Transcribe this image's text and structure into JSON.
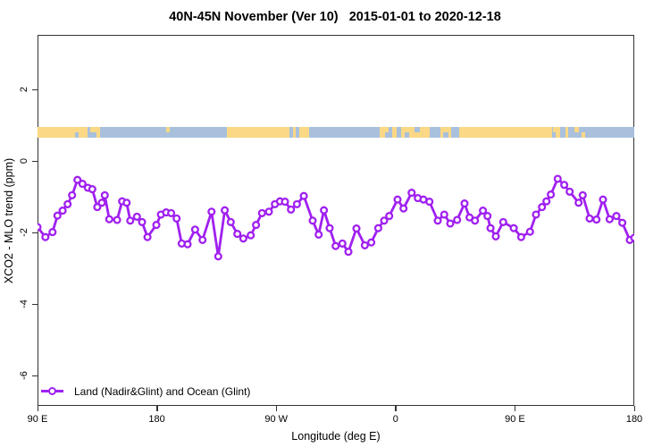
{
  "title": "40N-45N November (Ver 10)   2015-01-01 to 2020-12-18",
  "legend": {
    "label": "Land (Nadir&Glint) and Ocean (Glint)"
  },
  "colors": {
    "series": "#A020F0",
    "marker_fill": "#ffffff",
    "land": "#FAD886",
    "ocean": "#A8C0DC",
    "frame": "#333333"
  },
  "chart_data": {
    "type": "line",
    "title": "40N-45N November (Ver 10)   2015-01-01 to 2020-12-18",
    "xlabel": "Longitude (deg E)",
    "ylabel": "XCO2 - MLO trend (ppm)",
    "x_axis_note": "axis spans 450 deg eastward starting at 90E (90E,180,90W,0,90E,180)",
    "x_ticks": [
      {
        "pos": 0,
        "label": "90 E"
      },
      {
        "pos": 90,
        "label": "180"
      },
      {
        "pos": 180,
        "label": "90 W"
      },
      {
        "pos": 270,
        "label": "0"
      },
      {
        "pos": 360,
        "label": "90 E"
      },
      {
        "pos": 450,
        "label": "180"
      }
    ],
    "y_ticks": [
      {
        "val": 2,
        "label": "2"
      },
      {
        "val": 0,
        "label": "0"
      },
      {
        "val": -2,
        "label": "-2"
      },
      {
        "val": -4,
        "label": "-4"
      },
      {
        "val": -6,
        "label": "-6"
      }
    ],
    "xlim": [
      0,
      450
    ],
    "ylim": [
      -6.9,
      3.55
    ],
    "grid": false,
    "legend_position": "bottom-left",
    "series": [
      {
        "name": "Land (Nadir&Glint) and Ocean (Glint)",
        "marker": "open-circle",
        "points": [
          [
            0,
            -1.85
          ],
          [
            5.9,
            -2.13
          ],
          [
            11.3,
            -1.99
          ],
          [
            15.0,
            -1.53
          ],
          [
            18.9,
            -1.39
          ],
          [
            22.7,
            -1.21
          ],
          [
            26.1,
            -0.96
          ],
          [
            30.1,
            -0.53
          ],
          [
            33.9,
            -0.64
          ],
          [
            37.9,
            -0.75
          ],
          [
            41.3,
            -0.79
          ],
          [
            45.1,
            -1.29
          ],
          [
            48.5,
            -1.17
          ],
          [
            50.7,
            -0.96
          ],
          [
            54.1,
            -1.63
          ],
          [
            60.0,
            -1.65
          ],
          [
            63.8,
            -1.13
          ],
          [
            67.2,
            -1.17
          ],
          [
            69.9,
            -1.67
          ],
          [
            75.0,
            -1.56
          ],
          [
            78.8,
            -1.71
          ],
          [
            82.9,
            -2.13
          ],
          [
            89.6,
            -1.79
          ],
          [
            93.0,
            -1.5
          ],
          [
            97.0,
            -1.44
          ],
          [
            100.8,
            -1.46
          ],
          [
            104.9,
            -1.61
          ],
          [
            108.7,
            -2.31
          ],
          [
            113.2,
            -2.33
          ],
          [
            118.8,
            -1.92
          ],
          [
            124.4,
            -2.21
          ],
          [
            131.2,
            -1.42
          ],
          [
            136.3,
            -2.67
          ],
          [
            141.2,
            -1.38
          ],
          [
            145.7,
            -1.71
          ],
          [
            150.7,
            -2.04
          ],
          [
            155.2,
            -2.17
          ],
          [
            160.8,
            -2.08
          ],
          [
            164.8,
            -1.79
          ],
          [
            169.3,
            -1.46
          ],
          [
            174.5,
            -1.42
          ],
          [
            179.0,
            -1.21
          ],
          [
            182.8,
            -1.13
          ],
          [
            186.6,
            -1.14
          ],
          [
            191.1,
            -1.36
          ],
          [
            195.6,
            -1.21
          ],
          [
            200.8,
            -0.98
          ],
          [
            207.5,
            -1.67
          ],
          [
            212.0,
            -2.06
          ],
          [
            216.0,
            -1.38
          ],
          [
            220.3,
            -1.88
          ],
          [
            224.8,
            -2.38
          ],
          [
            229.9,
            -2.31
          ],
          [
            234.4,
            -2.54
          ],
          [
            240.5,
            -1.89
          ],
          [
            246.8,
            -2.36
          ],
          [
            251.7,
            -2.28
          ],
          [
            256.9,
            -1.88
          ],
          [
            261.4,
            -1.67
          ],
          [
            265.2,
            -1.54
          ],
          [
            271.5,
            -1.08
          ],
          [
            276.0,
            -1.33
          ],
          [
            282.1,
            -0.89
          ],
          [
            286.8,
            -1.04
          ],
          [
            291.0,
            -1.08
          ],
          [
            295.5,
            -1.14
          ],
          [
            301.8,
            -1.67
          ],
          [
            306.7,
            -1.5
          ],
          [
            311.2,
            -1.75
          ],
          [
            316.4,
            -1.65
          ],
          [
            322.0,
            -1.19
          ],
          [
            325.8,
            -1.58
          ],
          [
            329.9,
            -1.67
          ],
          [
            335.9,
            -1.39
          ],
          [
            339.3,
            -1.54
          ],
          [
            341.6,
            -1.88
          ],
          [
            345.6,
            -2.11
          ],
          [
            351.2,
            -1.71
          ],
          [
            359.1,
            -1.88
          ],
          [
            364.7,
            -2.13
          ],
          [
            371.4,
            -1.98
          ],
          [
            375.9,
            -1.5
          ],
          [
            380.4,
            -1.29
          ],
          [
            383.8,
            -1.13
          ],
          [
            387.1,
            -0.94
          ],
          [
            392.3,
            -0.5
          ],
          [
            397.2,
            -0.67
          ],
          [
            401.3,
            -0.86
          ],
          [
            408.0,
            -1.17
          ],
          [
            411.1,
            -0.96
          ],
          [
            416.3,
            -1.61
          ],
          [
            421.5,
            -1.64
          ],
          [
            426.4,
            -1.08
          ],
          [
            431.4,
            -1.63
          ],
          [
            436.5,
            -1.54
          ],
          [
            441.0,
            -1.73
          ],
          [
            446.6,
            -2.21
          ],
          [
            450,
            -2.15
          ]
        ]
      }
    ],
    "map_strip": {
      "description": "land/ocean coastline band at 40N-45N",
      "y_range_ppm": [
        0.65,
        0.95
      ],
      "segments": [
        {
          "range": [
            0,
            37.7
          ],
          "type": "land"
        },
        {
          "range": [
            37.7,
            44.5
          ],
          "type": "ocean"
        },
        {
          "range": [
            44.5,
            47
          ],
          "type": "land"
        },
        {
          "range": [
            47,
            143
          ],
          "type": "ocean"
        },
        {
          "range": [
            143,
            190
          ],
          "type": "land"
        },
        {
          "range": [
            190,
            192.5
          ],
          "type": "ocean"
        },
        {
          "range": [
            192.5,
            194.5
          ],
          "type": "land"
        },
        {
          "range": [
            194.5,
            197.5
          ],
          "type": "ocean"
        },
        {
          "range": [
            197.5,
            205
          ],
          "type": "land"
        },
        {
          "range": [
            205,
            258
          ],
          "type": "ocean"
        },
        {
          "range": [
            258,
            265
          ],
          "type": "land"
        },
        {
          "range": [
            265,
            267.5
          ],
          "type": "ocean"
        },
        {
          "range": [
            267.5,
            271
          ],
          "type": "land"
        },
        {
          "range": [
            271,
            274
          ],
          "type": "ocean"
        },
        {
          "range": [
            274,
            296
          ],
          "type": "land"
        },
        {
          "range": [
            296,
            304
          ],
          "type": "ocean"
        },
        {
          "range": [
            304,
            312
          ],
          "type": "land"
        },
        {
          "range": [
            312,
            318
          ],
          "type": "ocean"
        },
        {
          "range": [
            318,
            388
          ],
          "type": "land"
        },
        {
          "range": [
            388,
            391
          ],
          "type": "ocean"
        },
        {
          "range": [
            391,
            394
          ],
          "type": "land"
        },
        {
          "range": [
            394,
            398
          ],
          "type": "ocean"
        },
        {
          "range": [
            398,
            400
          ],
          "type": "land"
        },
        {
          "range": [
            400,
            450
          ],
          "type": "ocean"
        }
      ],
      "coast_patches": [
        {
          "range": [
            28,
            31
          ],
          "type": "ocean",
          "half": "bottom"
        },
        {
          "range": [
            40,
            44.5
          ],
          "type": "land",
          "half": "top"
        },
        {
          "range": [
            97,
            100
          ],
          "type": "land",
          "half": "top"
        },
        {
          "range": [
            262,
            266
          ],
          "type": "ocean",
          "half": "bottom"
        },
        {
          "range": [
            277,
            280
          ],
          "type": "ocean",
          "half": "bottom"
        },
        {
          "range": [
            284,
            288
          ],
          "type": "ocean",
          "half": "top"
        },
        {
          "range": [
            306,
            310
          ],
          "type": "ocean",
          "half": "bottom"
        },
        {
          "range": [
            389,
            392
          ],
          "type": "land",
          "half": "top"
        },
        {
          "range": [
            405,
            408
          ],
          "type": "land",
          "half": "top"
        },
        {
          "range": [
            410,
            413
          ],
          "type": "land",
          "half": "bottom"
        }
      ]
    }
  }
}
